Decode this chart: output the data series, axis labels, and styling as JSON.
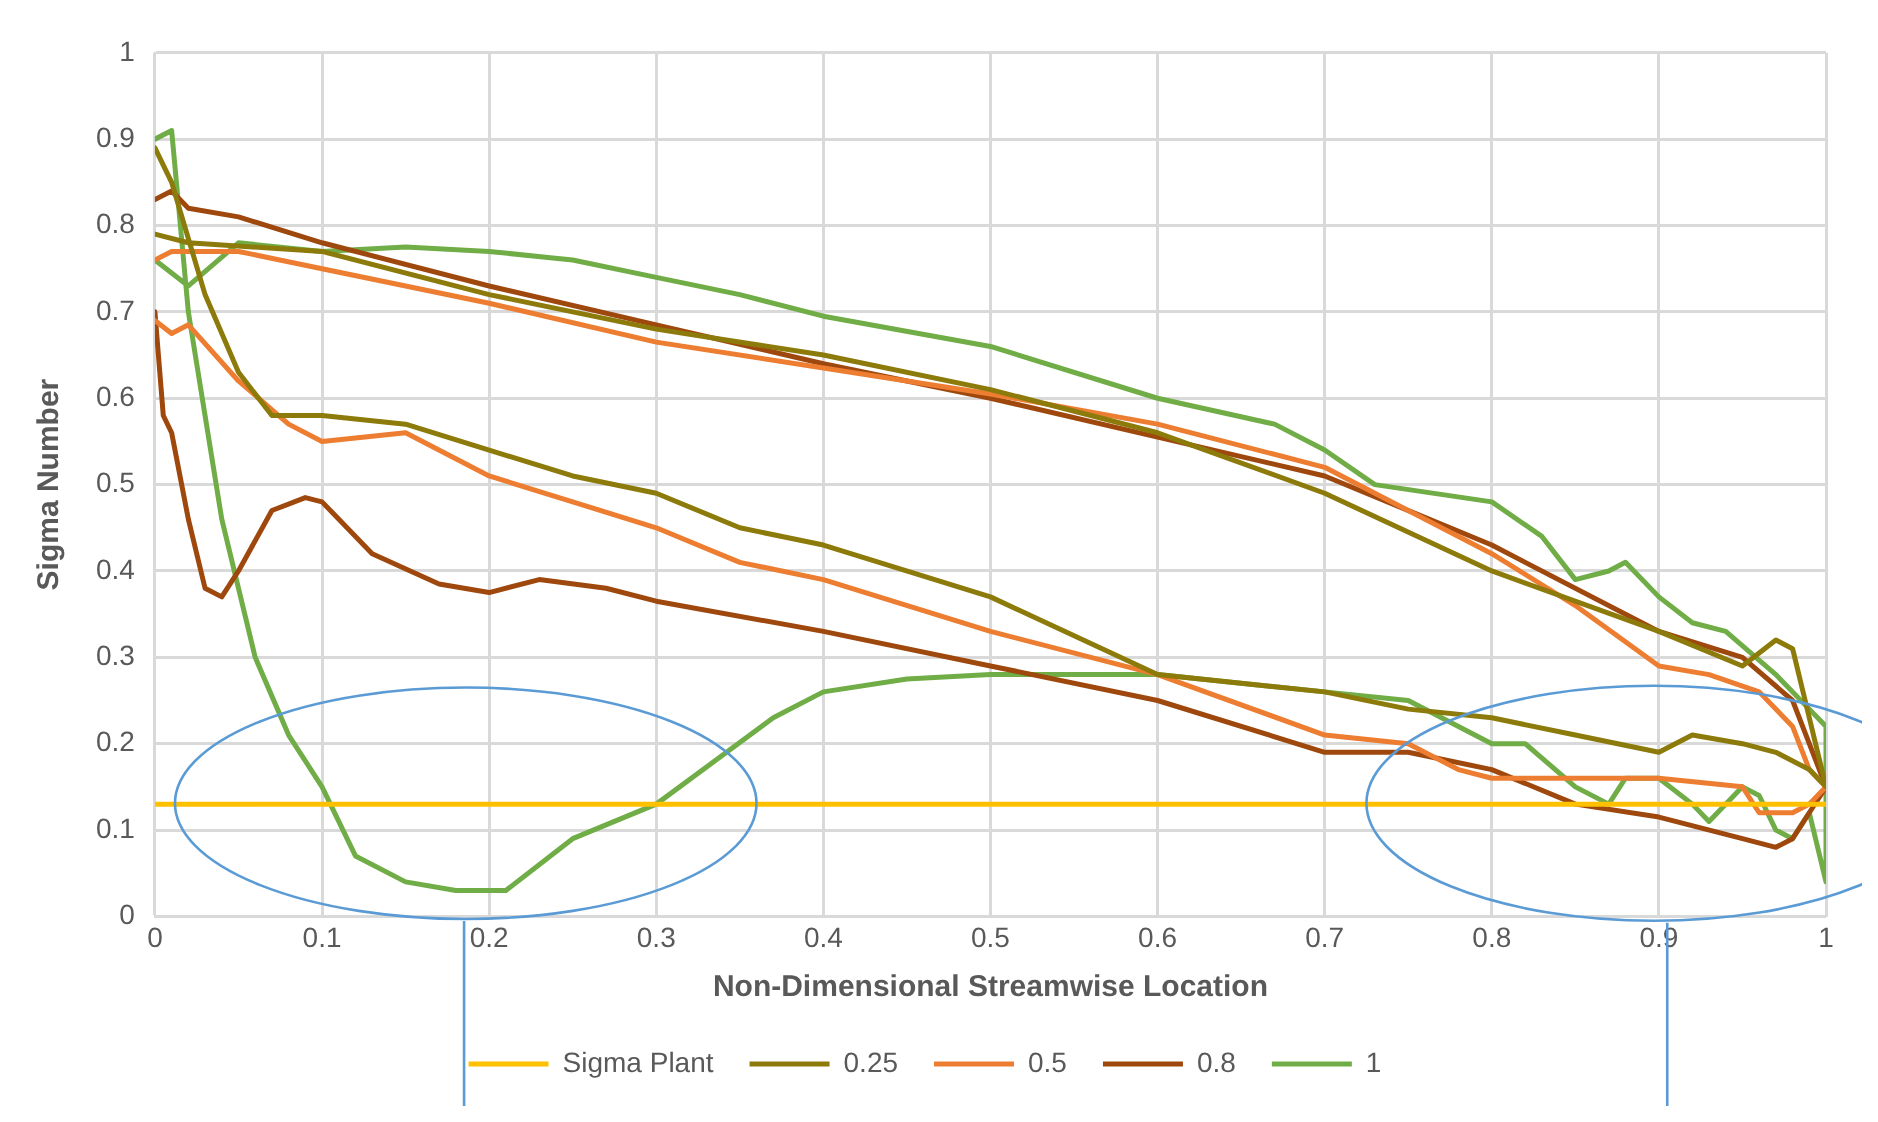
{
  "chart_data": {
    "type": "line",
    "xlabel": "Non-Dimensional Streamwise Location",
    "ylabel": "Sigma Number",
    "xlim": [
      0,
      1
    ],
    "xticks": [
      0,
      0.1,
      0.2,
      0.3,
      0.4,
      0.5,
      0.6,
      0.7,
      0.8,
      0.9,
      1
    ],
    "ylim": [
      0,
      1
    ],
    "yticks": [
      0,
      0.1,
      0.2,
      0.3,
      0.4,
      0.5,
      0.6,
      0.7,
      0.8,
      0.9,
      1
    ],
    "grid": true,
    "legend": "bottom",
    "marker": "none",
    "line_style": "solid",
    "series": [
      {
        "name": "Sigma Plant",
        "color": "#ffc000",
        "x": [
          0,
          1
        ],
        "values": [
          0.13,
          0.13
        ]
      },
      {
        "name": "0.25",
        "color": "#8c7a0a",
        "x": [
          0,
          0.02,
          0.1,
          0.2,
          0.3,
          0.4,
          0.5,
          0.6,
          0.7,
          0.8,
          0.9,
          0.95,
          0.97,
          0.98,
          0.99,
          1,
          0.99,
          0.97,
          0.95,
          0.92,
          0.9,
          0.85,
          0.8,
          0.75,
          0.7,
          0.6,
          0.5,
          0.4,
          0.35,
          0.3,
          0.25,
          0.2,
          0.15,
          0.1,
          0.07,
          0.05,
          0.03,
          0.01,
          0
        ],
        "values": [
          0.79,
          0.78,
          0.77,
          0.72,
          0.68,
          0.65,
          0.61,
          0.56,
          0.49,
          0.4,
          0.33,
          0.29,
          0.32,
          0.31,
          0.23,
          0.15,
          0.17,
          0.19,
          0.2,
          0.21,
          0.19,
          0.21,
          0.23,
          0.24,
          0.26,
          0.28,
          0.37,
          0.43,
          0.45,
          0.49,
          0.51,
          0.54,
          0.57,
          0.58,
          0.58,
          0.63,
          0.72,
          0.85,
          0.89
        ]
      },
      {
        "name": "0.5",
        "color": "#ed7d31",
        "x": [
          0,
          0.01,
          0.05,
          0.1,
          0.2,
          0.3,
          0.4,
          0.5,
          0.6,
          0.7,
          0.8,
          0.85,
          0.9,
          0.93,
          0.96,
          0.98,
          0.99,
          1,
          0.99,
          0.98,
          0.96,
          0.95,
          0.9,
          0.8,
          0.78,
          0.75,
          0.7,
          0.6,
          0.5,
          0.4,
          0.35,
          0.3,
          0.25,
          0.2,
          0.15,
          0.1,
          0.08,
          0.05,
          0.02,
          0.01,
          0
        ],
        "values": [
          0.76,
          0.77,
          0.77,
          0.75,
          0.71,
          0.665,
          0.635,
          0.605,
          0.57,
          0.52,
          0.42,
          0.36,
          0.29,
          0.28,
          0.26,
          0.22,
          0.17,
          0.15,
          0.13,
          0.12,
          0.12,
          0.15,
          0.16,
          0.16,
          0.17,
          0.2,
          0.21,
          0.28,
          0.33,
          0.39,
          0.41,
          0.45,
          0.48,
          0.51,
          0.56,
          0.55,
          0.57,
          0.62,
          0.685,
          0.675,
          0.69
        ]
      },
      {
        "name": "0.8",
        "color": "#9e480e",
        "x": [
          0,
          0.01,
          0.02,
          0.05,
          0.1,
          0.2,
          0.3,
          0.4,
          0.5,
          0.6,
          0.7,
          0.8,
          0.9,
          0.95,
          0.98,
          0.99,
          1,
          0.99,
          0.98,
          0.97,
          0.95,
          0.9,
          0.85,
          0.8,
          0.75,
          0.7,
          0.6,
          0.5,
          0.4,
          0.3,
          0.27,
          0.23,
          0.2,
          0.17,
          0.13,
          0.1,
          0.09,
          0.07,
          0.05,
          0.04,
          0.03,
          0.02,
          0.01,
          0.005,
          0
        ],
        "values": [
          0.83,
          0.84,
          0.82,
          0.81,
          0.78,
          0.73,
          0.685,
          0.64,
          0.6,
          0.555,
          0.51,
          0.43,
          0.33,
          0.3,
          0.25,
          0.2,
          0.15,
          0.12,
          0.09,
          0.08,
          0.09,
          0.115,
          0.13,
          0.17,
          0.19,
          0.19,
          0.25,
          0.29,
          0.33,
          0.365,
          0.38,
          0.39,
          0.375,
          0.385,
          0.42,
          0.48,
          0.485,
          0.47,
          0.4,
          0.37,
          0.38,
          0.46,
          0.56,
          0.58,
          0.7
        ]
      },
      {
        "name": "1",
        "color": "#70ad47",
        "x": [
          0,
          0.02,
          0.05,
          0.1,
          0.15,
          0.2,
          0.25,
          0.3,
          0.35,
          0.4,
          0.5,
          0.6,
          0.67,
          0.7,
          0.73,
          0.8,
          0.83,
          0.85,
          0.87,
          0.88,
          0.9,
          0.92,
          0.94,
          0.97,
          0.99,
          1,
          1,
          0.99,
          0.98,
          0.97,
          0.96,
          0.95,
          0.93,
          0.92,
          0.9,
          0.88,
          0.87,
          0.85,
          0.82,
          0.8,
          0.75,
          0.7,
          0.6,
          0.5,
          0.45,
          0.4,
          0.37,
          0.3,
          0.25,
          0.21,
          0.18,
          0.15,
          0.12,
          0.1,
          0.08,
          0.06,
          0.04,
          0.02,
          0.01,
          0
        ],
        "values": [
          0.76,
          0.73,
          0.78,
          0.77,
          0.775,
          0.77,
          0.76,
          0.74,
          0.72,
          0.695,
          0.66,
          0.6,
          0.57,
          0.54,
          0.5,
          0.48,
          0.44,
          0.39,
          0.4,
          0.41,
          0.37,
          0.34,
          0.33,
          0.28,
          0.24,
          0.22,
          0.04,
          0.12,
          0.09,
          0.1,
          0.14,
          0.15,
          0.11,
          0.13,
          0.16,
          0.16,
          0.13,
          0.15,
          0.2,
          0.2,
          0.25,
          0.26,
          0.28,
          0.28,
          0.275,
          0.26,
          0.23,
          0.13,
          0.09,
          0.03,
          0.03,
          0.04,
          0.07,
          0.15,
          0.21,
          0.3,
          0.46,
          0.7,
          0.91,
          0.9
        ]
      }
    ]
  }
}
